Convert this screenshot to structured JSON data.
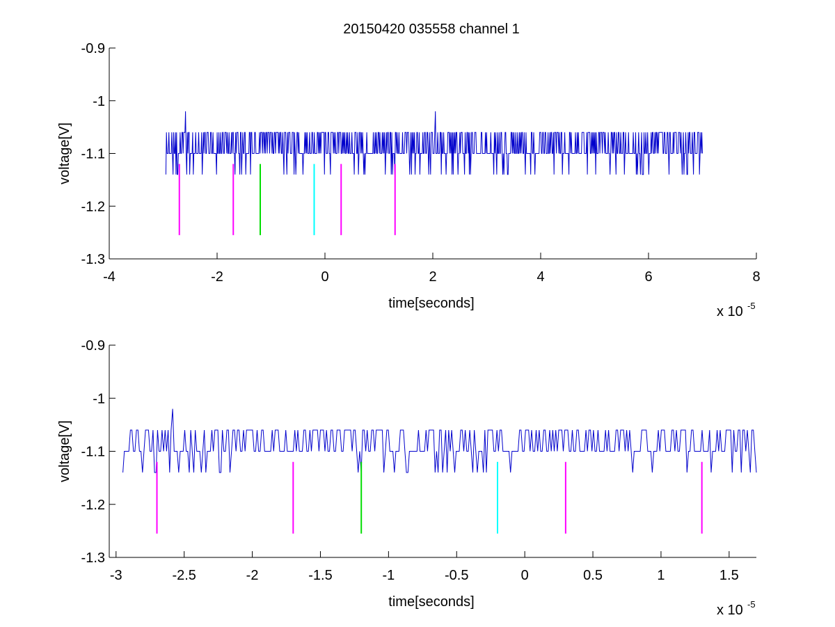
{
  "figure": {
    "title": "20150420 035558 channel 1",
    "background": "#ffffff"
  },
  "colors": {
    "trace": "#0000cc",
    "marker_magenta": "#ff00ff",
    "marker_green": "#00dd00",
    "marker_cyan": "#00ffff",
    "axes": "#000000"
  },
  "chart_data": [
    {
      "type": "line",
      "title": "20150420 035558 channel 1",
      "xlabel": "time[seconds]",
      "ylabel": "voltage[V]",
      "x_exponent_label": "x 10",
      "x_exponent": "-5",
      "xlim": [
        -4,
        8
      ],
      "ylim": [
        -1.3,
        -0.9
      ],
      "y_reversed": true,
      "grid": false,
      "xticks": [
        -4,
        -2,
        0,
        2,
        4,
        6,
        8
      ],
      "xtick_labels": [
        "-4",
        "-2",
        "0",
        "2",
        "4",
        "6",
        "8"
      ],
      "yticks": [
        -0.9,
        -1,
        -1.1,
        -1.2,
        -1.3
      ],
      "ytick_labels": [
        "-0.9",
        "-1",
        "-1.1",
        "-1.2",
        "-1.3"
      ],
      "series": [
        {
          "color": "#0000cc",
          "x_range": [
            -2.95,
            7.0
          ],
          "baseline": -1.1,
          "levels": [
            -1.06,
            -1.1,
            -1.14
          ],
          "spikes": [
            {
              "x": -2.58,
              "y": -1.02
            },
            {
              "x": 2.05,
              "y": -1.02
            }
          ]
        }
      ],
      "markers": [
        {
          "x": -2.7,
          "y_top": -1.12,
          "y_bottom": -1.255,
          "color": "#ff00ff"
        },
        {
          "x": -1.7,
          "y_top": -1.12,
          "y_bottom": -1.255,
          "color": "#ff00ff"
        },
        {
          "x": -1.2,
          "y_top": -1.12,
          "y_bottom": -1.255,
          "color": "#00dd00"
        },
        {
          "x": -0.2,
          "y_top": -1.12,
          "y_bottom": -1.255,
          "color": "#00ffff"
        },
        {
          "x": 0.3,
          "y_top": -1.12,
          "y_bottom": -1.255,
          "color": "#ff00ff"
        },
        {
          "x": 1.3,
          "y_top": -1.12,
          "y_bottom": -1.255,
          "color": "#ff00ff"
        }
      ]
    },
    {
      "type": "line",
      "title": "",
      "xlabel": "time[seconds]",
      "ylabel": "voltage[V]",
      "x_exponent_label": "x 10",
      "x_exponent": "-5",
      "xlim": [
        -3.05,
        1.7
      ],
      "ylim": [
        -1.3,
        -0.9
      ],
      "y_reversed": true,
      "grid": false,
      "xticks": [
        -3,
        -2.5,
        -2,
        -1.5,
        -1,
        -0.5,
        0,
        0.5,
        1,
        1.5
      ],
      "xtick_labels": [
        "-3",
        "-2.5",
        "-2",
        "-1.5",
        "-1",
        "-0.5",
        "0",
        "0.5",
        "1",
        "1.5"
      ],
      "yticks": [
        -0.9,
        -1,
        -1.1,
        -1.2,
        -1.3
      ],
      "ytick_labels": [
        "-0.9",
        "-1",
        "-1.1",
        "-1.2",
        "-1.3"
      ],
      "series": [
        {
          "color": "#0000cc",
          "x_range": [
            -2.95,
            1.7
          ],
          "baseline": -1.1,
          "levels": [
            -1.06,
            -1.1,
            -1.14
          ],
          "spikes": [
            {
              "x": -2.58,
              "y": -1.02
            }
          ]
        }
      ],
      "markers": [
        {
          "x": -2.7,
          "y_top": -1.12,
          "y_bottom": -1.255,
          "color": "#ff00ff"
        },
        {
          "x": -1.7,
          "y_top": -1.12,
          "y_bottom": -1.255,
          "color": "#ff00ff"
        },
        {
          "x": -1.2,
          "y_top": -1.12,
          "y_bottom": -1.255,
          "color": "#00dd00"
        },
        {
          "x": -0.2,
          "y_top": -1.12,
          "y_bottom": -1.255,
          "color": "#00ffff"
        },
        {
          "x": 0.3,
          "y_top": -1.12,
          "y_bottom": -1.255,
          "color": "#ff00ff"
        },
        {
          "x": 1.3,
          "y_top": -1.12,
          "y_bottom": -1.255,
          "color": "#ff00ff"
        }
      ]
    }
  ]
}
